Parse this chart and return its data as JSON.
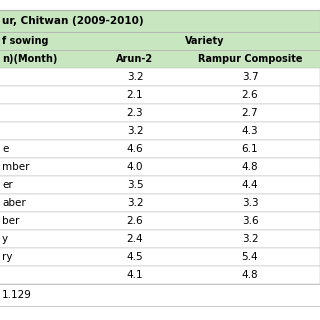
{
  "title": "ur, Chitwan (2009-2010)",
  "col_header_variety": "Variety",
  "col_header_arun": "Arun-2",
  "col_header_rampur": "Rampur Composite",
  "col_header_date_line1": "f sowing",
  "col_header_date_line2": "n)(Month)",
  "rows": [
    {
      "month": "",
      "arun2": "3.2",
      "rampur": "3.7"
    },
    {
      "month": "",
      "arun2": "2.1",
      "rampur": "2.6"
    },
    {
      "month": "",
      "arun2": "2.3",
      "rampur": "2.7"
    },
    {
      "month": "",
      "arun2": "3.2",
      "rampur": "4.3"
    },
    {
      "month": "e",
      "arun2": "4.6",
      "rampur": "6.1"
    },
    {
      "month": "mber",
      "arun2": "4.0",
      "rampur": "4.8"
    },
    {
      "month": "er",
      "arun2": "3.5",
      "rampur": "4.4"
    },
    {
      "month": "aber",
      "arun2": "3.2",
      "rampur": "3.3"
    },
    {
      "month": "ber",
      "arun2": "2.6",
      "rampur": "3.6"
    },
    {
      "month": "y",
      "arun2": "2.4",
      "rampur": "3.2"
    },
    {
      "month": "ry",
      "arun2": "4.5",
      "rampur": "5.4"
    },
    {
      "month": "",
      "arun2": "4.1",
      "rampur": "4.8"
    }
  ],
  "footer": "1.129",
  "header_bg": "#c8e6c0",
  "white_bg": "#ffffff",
  "border_color": "#b0b0b0",
  "title_fontsize": 7.5,
  "header_fontsize": 7.0,
  "cell_fontsize": 7.5,
  "footer_fontsize": 7.5,
  "figsize": [
    3.2,
    3.2
  ],
  "dpi": 100
}
